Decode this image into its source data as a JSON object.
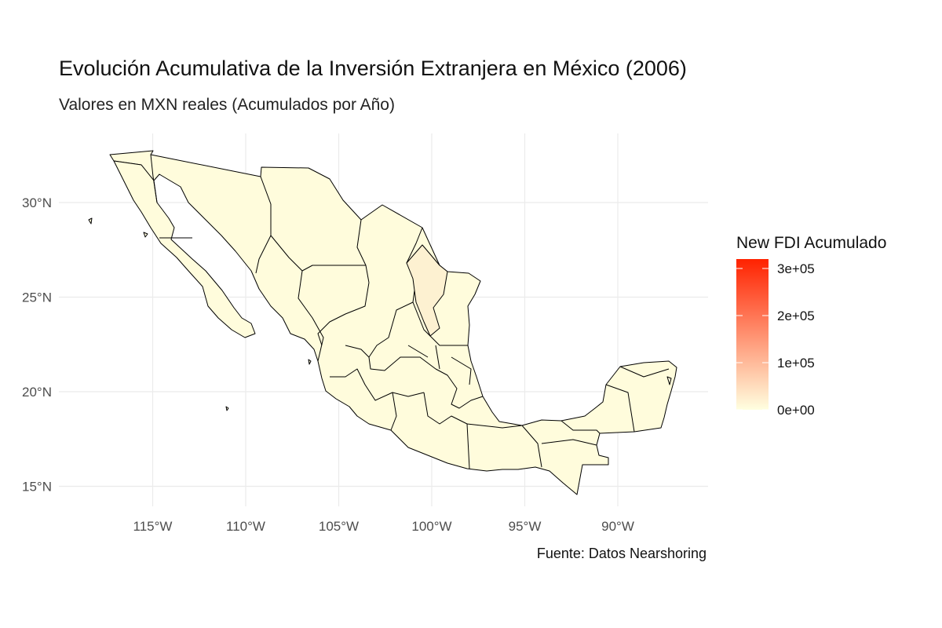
{
  "title": "Evolución Acumulativa de la Inversión Extranjera en México (2006)",
  "subtitle": "Valores en MXN reales (Acumulados por Año)",
  "caption": "Fuente: Datos Nearshoring",
  "axes": {
    "lat_ticks": [
      {
        "value": 30,
        "label": "30°N"
      },
      {
        "value": 25,
        "label": "25°N"
      },
      {
        "value": 20,
        "label": "20°N"
      },
      {
        "value": 15,
        "label": "15°N"
      }
    ],
    "lon_ticks": [
      {
        "value": -115,
        "label": "115°W"
      },
      {
        "value": -110,
        "label": "110°W"
      },
      {
        "value": -105,
        "label": "105°W"
      },
      {
        "value": -100,
        "label": "100°W"
      },
      {
        "value": -95,
        "label": "95°W"
      },
      {
        "value": -90,
        "label": "90°W"
      }
    ],
    "grid": true
  },
  "legend": {
    "title": "New FDI Acumulado",
    "position": "right",
    "low_color": "#ffffe0",
    "high_color": "#ff2200",
    "range": [
      0,
      320000
    ],
    "breaks": [
      {
        "value": 300000,
        "label": "3e+05"
      },
      {
        "value": 200000,
        "label": "2e+05"
      },
      {
        "value": 100000,
        "label": "1e+05"
      },
      {
        "value": 0,
        "label": "0e+00"
      }
    ]
  },
  "colors": {
    "state_fill": "#fffcdc",
    "highlight_fill": "#fdf1d1",
    "border": "#000000",
    "grid": "#ebebeb"
  }
}
